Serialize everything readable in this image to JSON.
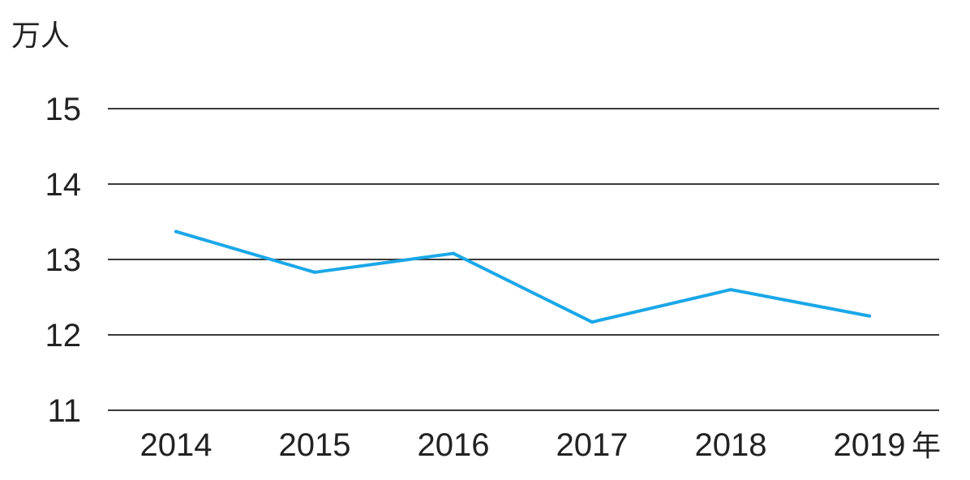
{
  "chart_data": {
    "type": "line",
    "ylabel": "万人",
    "xlabel": "年",
    "categories": [
      "2014",
      "2015",
      "2016",
      "2017",
      "2018",
      "2019"
    ],
    "series": [
      {
        "values": [
          13.37,
          12.83,
          13.08,
          12.17,
          12.6,
          12.25
        ],
        "color": "#1aa7e8"
      }
    ],
    "ylim": [
      11,
      15
    ],
    "yticks": [
      "11",
      "12",
      "13",
      "14",
      "15"
    ],
    "grid": true,
    "legend": "none"
  }
}
